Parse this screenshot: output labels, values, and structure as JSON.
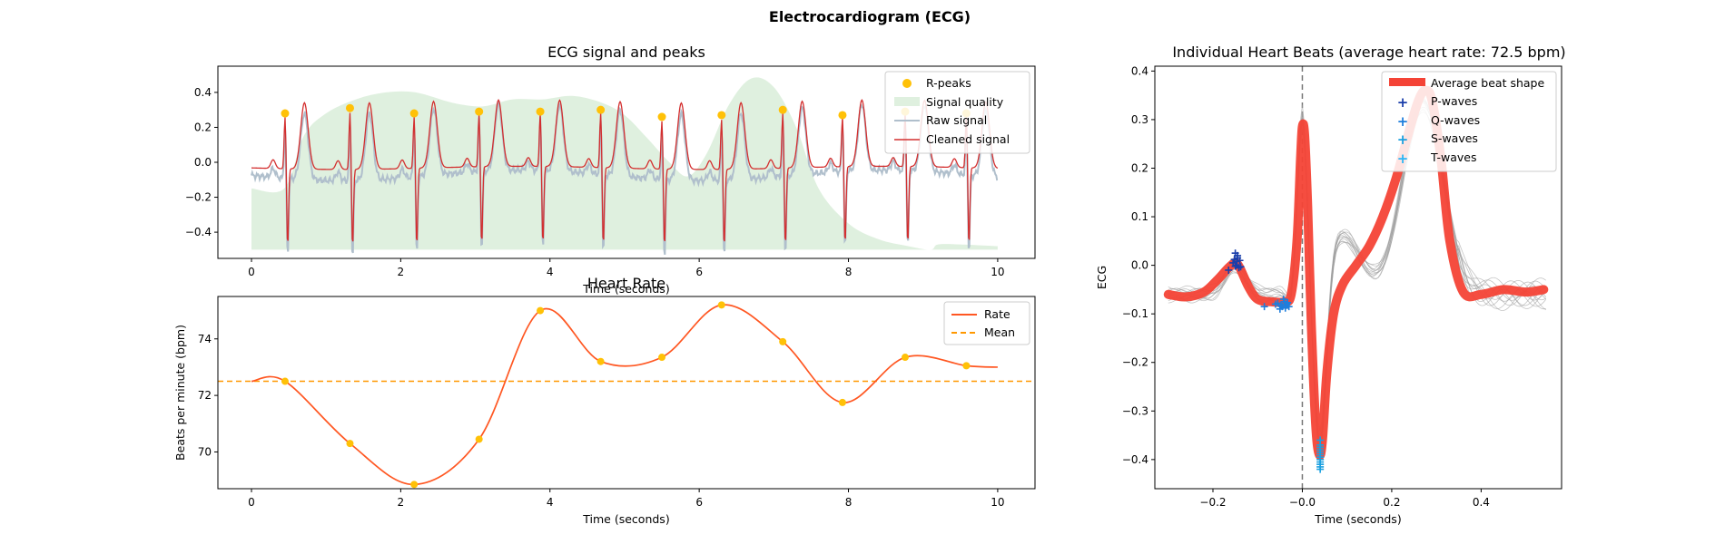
{
  "figure": {
    "title": "Electrocardiogram (ECG)"
  },
  "colors": {
    "rpeak": "#FFC107",
    "quality": "#DFF0DF",
    "raw": "#B0BFCC",
    "cleaned": "#D32F2F",
    "rate": "#FF5722",
    "mean": "#FF9800",
    "avg_beat": "#F44336",
    "p_wave": "#1A3EAA",
    "q_wave": "#1E7EDC",
    "s_wave": "#1BA0E0",
    "t_wave": "#29B6F6",
    "indiv_beats": "#9E9E9E"
  },
  "chart_data": [
    {
      "id": "ecg",
      "type": "line",
      "title": "ECG signal and peaks",
      "xlabel": "Time (seconds)",
      "ylabel": "",
      "xlim": [
        -0.45,
        10.5
      ],
      "ylim": [
        -0.55,
        0.55
      ],
      "xticks": [
        0,
        2,
        4,
        6,
        8,
        10
      ],
      "yticks": [
        -0.4,
        -0.2,
        0.0,
        0.2,
        0.4
      ],
      "ytick_labels": [
        "−0.4",
        "−0.2",
        "0.0",
        "0.2",
        "0.4"
      ],
      "legend": {
        "position": "top-right",
        "entries": [
          "R-peaks",
          "Signal quality",
          "Raw signal",
          "Cleaned signal"
        ]
      },
      "r_peaks": {
        "x": [
          0.45,
          1.32,
          2.18,
          3.05,
          3.87,
          4.68,
          5.5,
          6.3,
          7.12,
          7.92,
          8.76,
          9.58
        ],
        "y": [
          0.28,
          0.31,
          0.28,
          0.29,
          0.29,
          0.3,
          0.26,
          0.27,
          0.3,
          0.27,
          0.29,
          0.28
        ]
      },
      "signal_quality": {
        "x": [
          0.0,
          0.44,
          0.7,
          1.0,
          1.4,
          1.8,
          2.2,
          2.7,
          3.1,
          3.5,
          3.9,
          4.3,
          4.7,
          5.0,
          5.3,
          5.6,
          5.85,
          6.1,
          6.4,
          6.7,
          7.0,
          7.3,
          7.6,
          8.0,
          8.4,
          8.8,
          9.1,
          9.2,
          9.5,
          10.0
        ],
        "y": [
          -0.15,
          -0.15,
          0.15,
          0.28,
          0.36,
          0.4,
          0.4,
          0.34,
          0.32,
          0.36,
          0.36,
          0.38,
          0.34,
          0.27,
          0.14,
          0.0,
          -0.08,
          0.05,
          0.33,
          0.48,
          0.43,
          0.2,
          -0.15,
          -0.35,
          -0.44,
          -0.48,
          -0.5,
          -0.47,
          -0.47,
          -0.48
        ]
      },
      "signal_quality_floor": -0.5
    },
    {
      "id": "rate",
      "type": "line",
      "title": "Heart Rate",
      "xlabel": "Time (seconds)",
      "ylabel": "Beats per minute (bpm)",
      "xlim": [
        -0.45,
        10.5
      ],
      "ylim": [
        68.7,
        75.5
      ],
      "xticks": [
        0,
        2,
        4,
        6,
        8,
        10
      ],
      "yticks": [
        70,
        72,
        74
      ],
      "legend": {
        "position": "top-right",
        "entries": [
          "Rate",
          "Mean"
        ]
      },
      "mean": 72.5,
      "points": {
        "x": [
          0.0,
          0.45,
          1.32,
          2.18,
          3.05,
          3.87,
          4.68,
          5.5,
          6.3,
          7.12,
          7.92,
          8.76,
          9.58,
          10.0
        ],
        "y": [
          72.5,
          72.5,
          70.3,
          68.85,
          70.45,
          75.0,
          73.2,
          73.35,
          75.2,
          73.9,
          71.75,
          73.35,
          73.05,
          73.0
        ]
      },
      "markers_x": [
        0.45,
        1.32,
        2.18,
        3.05,
        3.87,
        4.68,
        5.5,
        6.3,
        7.12,
        7.92,
        8.76,
        9.58
      ]
    },
    {
      "id": "beats",
      "type": "line",
      "title": "Individual Heart Beats (average heart rate: 72.5 bpm)",
      "xlabel": "Time (seconds)",
      "ylabel": "ECG",
      "xlim": [
        -0.33,
        0.58
      ],
      "ylim": [
        -0.46,
        0.41
      ],
      "xticks": [
        -0.2,
        -0.0,
        0.2,
        0.4
      ],
      "xtick_labels": [
        "−0.2",
        "−0.0",
        "0.2",
        "0.4"
      ],
      "yticks": [
        -0.4,
        -0.3,
        -0.2,
        -0.1,
        0.0,
        0.1,
        0.2,
        0.3,
        0.4
      ],
      "ytick_labels": [
        "−0.4",
        "−0.3",
        "−0.2",
        "−0.1",
        "0.0",
        "0.1",
        "0.2",
        "0.3",
        "0.4"
      ],
      "legend": {
        "position": "top-right",
        "entries": [
          "Average beat shape",
          "P-waves",
          "Q-waves",
          "S-waves",
          "T-waves"
        ]
      },
      "average_beat": {
        "x": [
          -0.3,
          -0.26,
          -0.22,
          -0.19,
          -0.165,
          -0.15,
          -0.14,
          -0.12,
          -0.1,
          -0.07,
          -0.04,
          -0.025,
          -0.012,
          -0.004,
          0.0,
          0.005,
          0.012,
          0.02,
          0.03,
          0.038,
          0.045,
          0.055,
          0.07,
          0.09,
          0.12,
          0.15,
          0.18,
          0.21,
          0.24,
          0.26,
          0.275,
          0.29,
          0.31,
          0.33,
          0.36,
          0.4,
          0.45,
          0.5,
          0.54
        ],
        "y": [
          -0.06,
          -0.065,
          -0.055,
          -0.03,
          -0.005,
          0.005,
          -0.005,
          -0.045,
          -0.07,
          -0.075,
          -0.075,
          -0.06,
          0.05,
          0.22,
          0.285,
          0.27,
          0.12,
          -0.12,
          -0.33,
          -0.39,
          -0.36,
          -0.22,
          -0.1,
          -0.04,
          0.0,
          0.04,
          0.1,
          0.18,
          0.28,
          0.34,
          0.36,
          0.34,
          0.22,
          0.05,
          -0.055,
          -0.06,
          -0.05,
          -0.055,
          -0.05
        ]
      },
      "p_waves": {
        "x": [
          -0.15,
          -0.145,
          -0.14,
          -0.155,
          -0.148,
          -0.142,
          -0.165,
          -0.145,
          -0.15,
          -0.138,
          -0.146,
          -0.152
        ],
        "y": [
          0.025,
          0.02,
          0.01,
          0.005,
          0.0,
          -0.005,
          -0.01,
          0.015,
          -0.002,
          -0.003,
          0.008,
          0.012
        ]
      },
      "q_waves": {
        "x": [
          -0.085,
          -0.06,
          -0.045,
          -0.04,
          -0.035,
          -0.05,
          -0.03,
          -0.042,
          -0.038,
          -0.055,
          -0.048,
          -0.033
        ],
        "y": [
          -0.085,
          -0.08,
          -0.085,
          -0.075,
          -0.08,
          -0.09,
          -0.085,
          -0.07,
          -0.088,
          -0.078,
          -0.082,
          -0.077
        ]
      },
      "s_waves": {
        "x": [
          0.04,
          0.04,
          0.04,
          0.04,
          0.04,
          0.04,
          0.04,
          0.04,
          0.04,
          0.04,
          0.04,
          0.04
        ],
        "y": [
          -0.36,
          -0.37,
          -0.38,
          -0.39,
          -0.395,
          -0.4,
          -0.405,
          -0.41,
          -0.415,
          -0.42,
          -0.385,
          -0.375
        ]
      }
    }
  ]
}
